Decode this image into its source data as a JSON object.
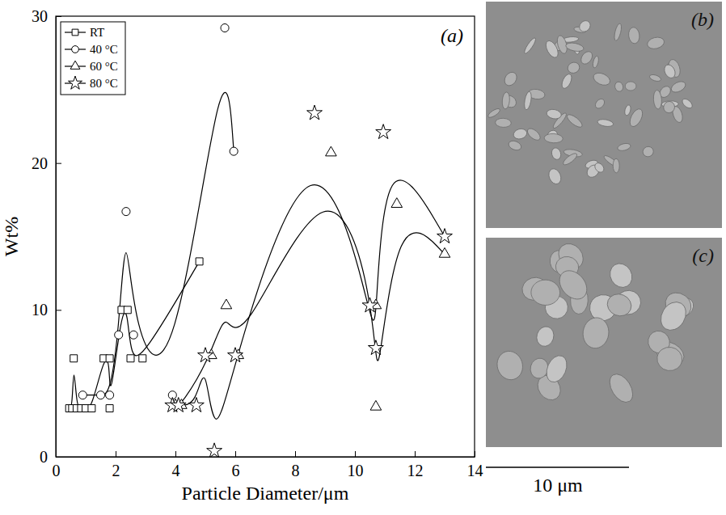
{
  "chart_data": {
    "type": "line",
    "x_label": "Particle Diameter/μm",
    "y_label": "Wt%",
    "annotations": [
      {
        "text": "(a)"
      }
    ],
    "xlim": [
      0,
      14
    ],
    "xticks": [
      0,
      2,
      4,
      6,
      8,
      10,
      12,
      14
    ],
    "ylim": [
      0,
      30
    ],
    "yticks": [
      0,
      10,
      20,
      30
    ],
    "legend": "top-left",
    "line_style": "smooth",
    "series": [
      {
        "name": "RT",
        "color": "#000000",
        "marker": "square",
        "x": [
          0.45,
          0.55,
          0.6,
          0.7,
          0.85,
          1.0,
          1.2,
          1.6,
          1.8,
          1.8,
          2.2,
          2.4,
          2.5,
          2.9,
          4.8
        ],
        "values": [
          3.3,
          3.3,
          6.7,
          3.3,
          3.3,
          3.3,
          3.3,
          6.7,
          6.7,
          3.3,
          10,
          10,
          6.7,
          6.7,
          13.3
        ]
      },
      {
        "name": "40 °C",
        "color": "#000000",
        "marker": "circle",
        "x": [
          0.9,
          1.5,
          1.8,
          2.1,
          2.35,
          2.6,
          3.9,
          5.65,
          5.95
        ],
        "values": [
          4.2,
          4.2,
          4.2,
          8.3,
          16.7,
          8.3,
          4.2,
          29.2,
          20.8
        ]
      },
      {
        "name": "60 °C",
        "color": "#000000",
        "marker": "triangle",
        "x": [
          4.0,
          4.2,
          5.2,
          5.7,
          6.1,
          9.2,
          10.7,
          10.7,
          11.4,
          13.0
        ],
        "values": [
          3.5,
          3.5,
          6.9,
          10.3,
          6.9,
          20.7,
          10.3,
          3.4,
          17.2,
          13.8
        ]
      },
      {
        "name": "80 °C",
        "color": "#000000",
        "marker": "star",
        "x": [
          3.9,
          4.1,
          4.7,
          5.0,
          5.3,
          6.0,
          8.65,
          10.5,
          10.7,
          10.95,
          13.0
        ],
        "values": [
          3.5,
          3.5,
          3.5,
          6.9,
          0.4,
          6.9,
          23.4,
          10.3,
          7.4,
          22.1,
          15.0
        ]
      }
    ]
  },
  "images": [
    {
      "label": "(b)"
    },
    {
      "label": "(c)"
    }
  ],
  "scale_bar": {
    "label": "10 μm"
  }
}
